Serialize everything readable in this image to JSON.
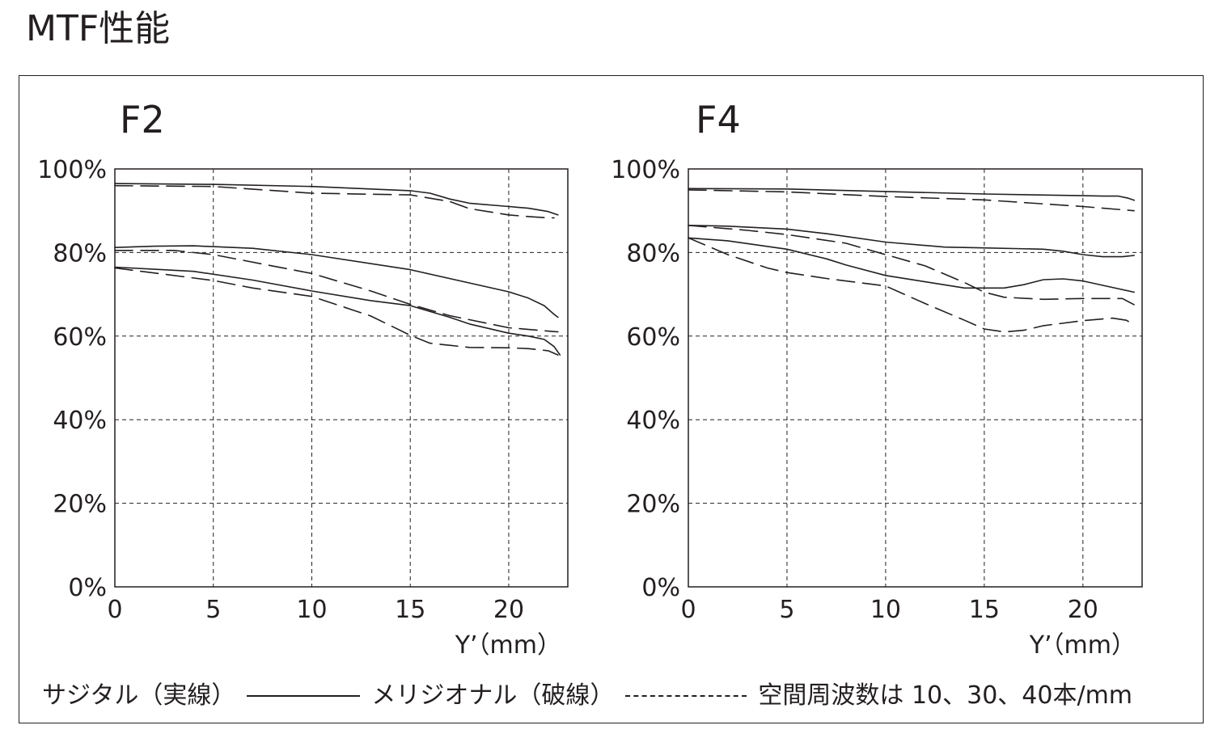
{
  "page_title": "MTF性能",
  "legend": {
    "sagittal_label": "サジタル（実線）",
    "meridional_label": "メリジオナル（破線）",
    "frequency_note": "空間周波数は 10、30、40本/mm"
  },
  "chart_data": [
    {
      "type": "line",
      "title": "F2",
      "xlabel": "Y’（mm）",
      "ylabel": "",
      "xlim": [
        0,
        23
      ],
      "ylim": [
        0,
        100
      ],
      "x_ticks": [
        0,
        5,
        10,
        15,
        20
      ],
      "y_ticks": [
        0,
        20,
        40,
        60,
        80,
        100
      ],
      "y_tick_labels": [
        "0%",
        "20%",
        "40%",
        "60%",
        "80%",
        "100%"
      ],
      "grid": true,
      "series": [
        {
          "style": "solid",
          "x": [
            0,
            5,
            10,
            15,
            16,
            17,
            18,
            20,
            21,
            22,
            22.5
          ],
          "y": [
            96.5,
            96.3,
            95.8,
            94.8,
            94.2,
            92.8,
            91.8,
            91.0,
            90.6,
            89.8,
            89.0
          ]
        },
        {
          "style": "dashed",
          "x": [
            0,
            5,
            10,
            15,
            17,
            18,
            20,
            21,
            22,
            22.3
          ],
          "y": [
            96.0,
            95.8,
            94.2,
            93.8,
            92.2,
            90.5,
            89.0,
            88.6,
            88.3,
            88.3
          ]
        },
        {
          "style": "solid",
          "x": [
            0,
            2,
            4,
            7,
            10,
            15,
            20,
            21,
            21.8,
            22.3,
            22.5
          ],
          "y": [
            81.2,
            81.5,
            81.6,
            81.0,
            79.5,
            75.9,
            70.6,
            69.1,
            67.3,
            65.2,
            64.5
          ]
        },
        {
          "style": "dashed",
          "x": [
            0,
            3,
            5,
            10,
            13,
            15,
            17,
            20,
            22.5
          ],
          "y": [
            80.5,
            80.5,
            79.5,
            75.0,
            70.8,
            67.6,
            64.9,
            62.0,
            61.0
          ]
        },
        {
          "style": "solid",
          "x": [
            0,
            2,
            4,
            7,
            10,
            13,
            15,
            17,
            18,
            20,
            21,
            21.8,
            22.3,
            22.6
          ],
          "y": [
            76.5,
            76.0,
            75.5,
            73.4,
            70.8,
            68.5,
            67.3,
            64.5,
            62.9,
            60.7,
            60.0,
            59.2,
            57.5,
            55.5
          ]
        },
        {
          "style": "dashed",
          "x": [
            0,
            5,
            7,
            10,
            13,
            15,
            16,
            17,
            18,
            20,
            21,
            22,
            22.5
          ],
          "y": [
            76.3,
            73.3,
            71.5,
            69.5,
            64.8,
            60.2,
            58.3,
            57.8,
            57.3,
            57.2,
            57.0,
            56.5,
            55.5
          ]
        }
      ]
    },
    {
      "type": "line",
      "title": "F4",
      "xlabel": "Y’（mm）",
      "ylabel": "",
      "xlim": [
        0,
        23
      ],
      "ylim": [
        0,
        100
      ],
      "x_ticks": [
        0,
        5,
        10,
        15,
        20
      ],
      "y_ticks": [
        0,
        20,
        40,
        60,
        80,
        100
      ],
      "y_tick_labels": [
        "0%",
        "20%",
        "40%",
        "60%",
        "80%",
        "100%"
      ],
      "grid": true,
      "series": [
        {
          "style": "solid",
          "x": [
            0,
            5,
            10,
            15,
            20,
            21,
            21.8,
            22.3,
            22.6
          ],
          "y": [
            95.3,
            95.2,
            94.6,
            94.0,
            93.6,
            93.5,
            93.5,
            93.0,
            92.5
          ]
        },
        {
          "style": "dashed",
          "x": [
            0,
            5,
            10,
            15,
            20,
            22.6
          ],
          "y": [
            95.0,
            94.5,
            93.4,
            92.6,
            91.0,
            90.0
          ]
        },
        {
          "style": "solid",
          "x": [
            0,
            2,
            5,
            7,
            10,
            13,
            15,
            18,
            19,
            20,
            21,
            22,
            22.6
          ],
          "y": [
            86.5,
            86.3,
            85.6,
            84.5,
            82.5,
            81.3,
            81.1,
            80.8,
            80.3,
            79.5,
            79.0,
            79.0,
            79.3
          ]
        },
        {
          "style": "dashed",
          "x": [
            0,
            3,
            5,
            8,
            10,
            12,
            14,
            15,
            16,
            18,
            20,
            22,
            22.6
          ],
          "y": [
            86.5,
            85.3,
            84.3,
            82.2,
            79.5,
            76.8,
            72.8,
            70.5,
            69.3,
            68.8,
            69.0,
            69.0,
            67.5
          ]
        },
        {
          "style": "solid",
          "x": [
            0,
            2,
            5,
            7,
            8,
            10,
            12,
            14,
            16,
            17,
            18,
            19,
            20,
            22.6
          ],
          "y": [
            83.5,
            82.8,
            80.8,
            78.5,
            77.0,
            74.5,
            73.0,
            71.5,
            71.5,
            72.3,
            73.5,
            73.7,
            73.2,
            70.5
          ]
        },
        {
          "style": "dashed",
          "x": [
            0,
            2,
            4,
            5,
            7,
            10,
            12,
            14,
            15,
            16,
            17,
            18,
            20,
            21.5,
            22.2,
            22.6
          ],
          "y": [
            83.5,
            79.5,
            76.3,
            75.2,
            73.8,
            72.0,
            67.8,
            63.8,
            61.7,
            61.0,
            61.4,
            62.5,
            63.7,
            64.3,
            63.8,
            62.7
          ]
        }
      ]
    }
  ]
}
